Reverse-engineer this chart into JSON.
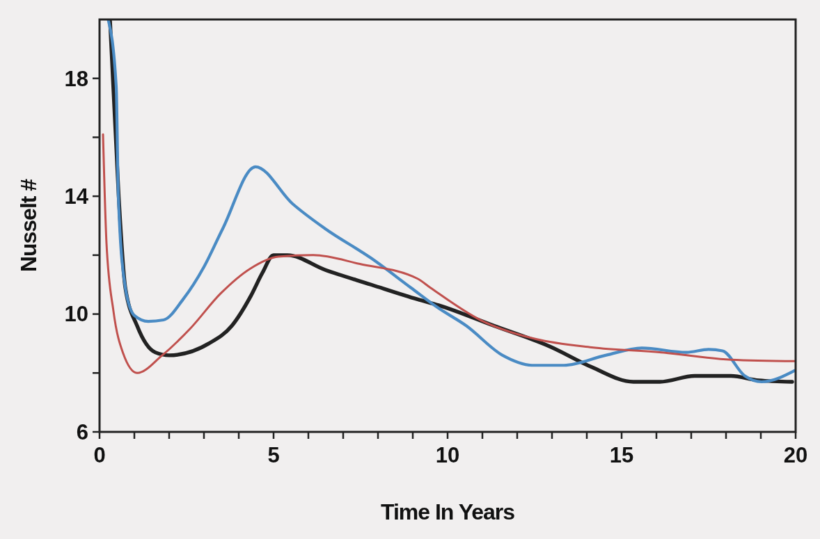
{
  "chart_data": {
    "type": "line",
    "xlabel": "Time In Years",
    "ylabel": "Nusselt #",
    "xlim": [
      0,
      20
    ],
    "ylim": [
      6,
      20
    ],
    "xticks": [
      0,
      {
        "value": 1,
        "label": null
      },
      {
        "value": 2,
        "label": null
      },
      {
        "value": 3,
        "label": null
      },
      {
        "value": 4,
        "label": null
      },
      5,
      {
        "value": 6,
        "label": null
      },
      {
        "value": 7,
        "label": null
      },
      {
        "value": 8,
        "label": null
      },
      {
        "value": 9,
        "label": null
      },
      10,
      {
        "value": 11,
        "label": null
      },
      {
        "value": 12,
        "label": null
      },
      {
        "value": 13,
        "label": null
      },
      {
        "value": 14,
        "label": null
      },
      15,
      {
        "value": 16,
        "label": null
      },
      {
        "value": 17,
        "label": null
      },
      {
        "value": 18,
        "label": null
      },
      {
        "value": 19,
        "label": null
      },
      20
    ],
    "yticks": [
      6,
      {
        "value": 8,
        "label": null
      },
      10,
      {
        "value": 12,
        "label": null
      },
      14,
      {
        "value": 16,
        "label": null
      },
      18
    ],
    "grid": false,
    "marker": "none",
    "line_style": "solid",
    "series": [
      {
        "color": "#222222",
        "x": [
          0.3,
          0.55,
          0.74,
          1.08,
          1.6,
          2.0,
          3.14,
          3.8,
          4.34,
          4.68,
          5.0,
          5.4,
          6.48,
          7.8,
          9.14,
          9.74,
          11.34,
          12.94,
          14.14,
          15.34,
          16.1,
          17.1,
          18.14,
          18.94,
          19.9
        ],
        "values": [
          20,
          14,
          10.9,
          9.6,
          8.7,
          8.6,
          9.0,
          9.6,
          10.6,
          11.4,
          12.0,
          12.0,
          11.5,
          11.0,
          10.5,
          10.3,
          9.6,
          8.9,
          8.2,
          7.7,
          7.7,
          7.9,
          7.9,
          7.75,
          7.7
        ]
      },
      {
        "color": "#4a8bc4",
        "x": [
          0.25,
          0.48,
          0.54,
          0.74,
          1.0,
          1.4,
          1.84,
          2.4,
          3.0,
          3.54,
          4.48,
          5.54,
          6.48,
          7.8,
          8.94,
          9.74,
          10.54,
          11.58,
          12.46,
          13.34,
          14.54,
          15.58,
          16.86,
          17.5,
          17.9,
          18.54,
          19.02,
          20
        ],
        "values": [
          20,
          17.7,
          14,
          10.9,
          9.95,
          9.75,
          9.8,
          10.5,
          11.6,
          12.9,
          15.0,
          13.75,
          12.9,
          11.9,
          10.9,
          10.2,
          9.6,
          8.6,
          8.26,
          8.26,
          8.6,
          8.85,
          8.7,
          8.8,
          8.75,
          7.9,
          7.7,
          8.1
        ]
      },
      {
        "color": "#c0504d",
        "x": [
          0.1,
          0.2,
          0.4,
          0.68,
          1.08,
          1.8,
          2.6,
          3.48,
          4.34,
          5.14,
          6.14,
          7.48,
          9.14,
          9.5,
          10.94,
          12.54,
          14.14,
          16.14,
          18.14,
          20
        ],
        "values": [
          16.1,
          12.4,
          10.1,
          8.66,
          8.0,
          8.6,
          9.5,
          10.7,
          11.55,
          11.95,
          12.0,
          11.7,
          11.2,
          10.9,
          9.8,
          9.15,
          8.87,
          8.7,
          8.45,
          8.4
        ]
      }
    ]
  }
}
